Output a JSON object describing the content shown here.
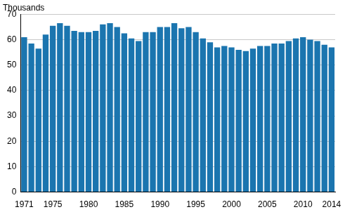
{
  "chart_data": {
    "type": "bar",
    "ylabel": "Thousands",
    "categories": [
      "1971",
      null,
      null,
      null,
      "1975",
      null,
      null,
      null,
      null,
      "1980",
      null,
      null,
      null,
      null,
      "1985",
      null,
      null,
      null,
      null,
      "1990",
      null,
      null,
      null,
      null,
      "1995",
      null,
      null,
      null,
      null,
      "2000",
      null,
      null,
      null,
      null,
      "2005",
      null,
      null,
      null,
      null,
      "2010",
      null,
      null,
      null,
      "2014"
    ],
    "values": [
      61,
      58.5,
      56.5,
      62,
      65.5,
      66.5,
      65.5,
      63.5,
      63,
      63,
      63.5,
      66,
      66.5,
      65,
      62.5,
      60.5,
      59.5,
      63,
      63,
      65,
      65,
      66.5,
      64.5,
      65,
      63,
      60.5,
      59,
      57,
      57.5,
      57,
      56,
      55.5,
      56.5,
      57.5,
      57.5,
      58.5,
      58.5,
      59.5,
      60.5,
      61,
      60,
      59.5,
      58,
      57
    ],
    "color": "#1b75af",
    "ylim": [
      0,
      70
    ],
    "yticks": [
      0,
      10,
      20,
      30,
      40,
      50,
      60,
      70
    ],
    "grid": true
  }
}
